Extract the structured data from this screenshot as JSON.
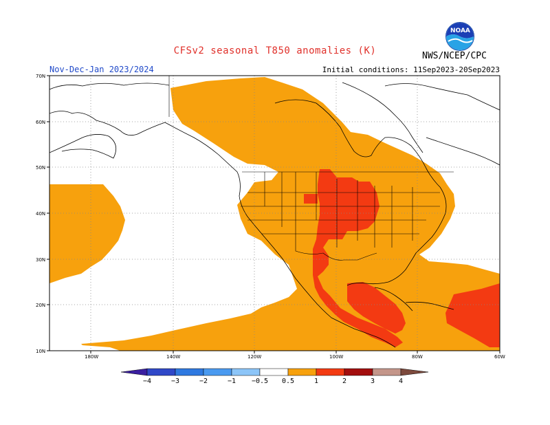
{
  "header": {
    "title": "CFSv2 seasonal T850 anomalies (K)",
    "season": "Nov-Dec-Jan 2023/2024",
    "initial_conditions": "Initial conditions: 11Sep2023-20Sep2023",
    "agency": "NWS/NCEP/CPC",
    "logo_text": "NOAA"
  },
  "axes": {
    "lat_labels": [
      "70N",
      "60N",
      "50N",
      "40N",
      "30N",
      "20N",
      "10N"
    ],
    "lon_labels": [
      "180W",
      "140W",
      "120W",
      "100W",
      "80W",
      "60W"
    ]
  },
  "colorbar": {
    "labels": [
      "−4",
      "−3",
      "−2",
      "−1",
      "−0.5",
      "0.5",
      "1",
      "2",
      "3",
      "4"
    ],
    "colors": [
      "#3a1fa0",
      "#3048c8",
      "#2f79e0",
      "#4a9af0",
      "#8cc5f8",
      "#ffffff",
      "#f7a10d",
      "#f33a12",
      "#a30e0e",
      "#c4968a",
      "#7d4a3d"
    ]
  },
  "legend_colors": {
    "anomaly_0_5_to_1": "#f7a10d",
    "anomaly_1_to_2": "#f33a12"
  }
}
